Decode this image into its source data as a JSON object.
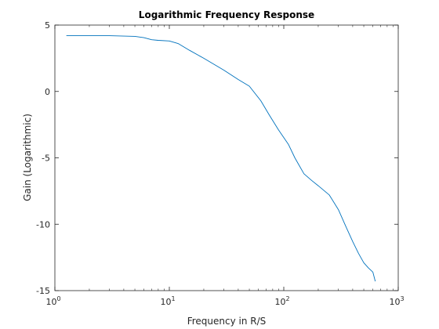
{
  "chart_data": {
    "type": "line",
    "title": "Logarithmic Frequency Response",
    "xlabel": "Frequency in R/S",
    "ylabel": "Gain (Logarithmic)",
    "xscale": "log",
    "xlim": [
      1,
      1000
    ],
    "ylim": [
      -15,
      5
    ],
    "grid": false,
    "legend": "none",
    "x_ticks": [
      {
        "value": 1,
        "base": "10",
        "exp": "0"
      },
      {
        "value": 10,
        "base": "10",
        "exp": "1"
      },
      {
        "value": 100,
        "base": "10",
        "exp": "2"
      },
      {
        "value": 1000,
        "base": "10",
        "exp": "3"
      }
    ],
    "y_ticks": [
      {
        "value": 5,
        "label": "5"
      },
      {
        "value": 0,
        "label": "0"
      },
      {
        "value": -5,
        "label": "-5"
      },
      {
        "value": -10,
        "label": "-10"
      },
      {
        "value": -15,
        "label": "-15"
      }
    ],
    "series": [
      {
        "color": "#0072bd",
        "x": [
          1.26,
          2,
          3,
          5,
          6,
          7,
          8,
          10,
          12,
          15,
          20,
          30,
          40,
          50,
          63,
          75,
          90,
          110,
          125,
          150,
          175,
          200,
          250,
          300,
          350,
          400,
          450,
          500,
          550,
          600,
          630
        ],
        "y": [
          4.2,
          4.2,
          4.2,
          4.15,
          4.05,
          3.9,
          3.85,
          3.8,
          3.6,
          3.1,
          2.5,
          1.6,
          0.9,
          0.4,
          -0.7,
          -1.8,
          -2.9,
          -4.0,
          -5.0,
          -6.2,
          -6.7,
          -7.1,
          -7.8,
          -8.9,
          -10.2,
          -11.3,
          -12.2,
          -12.9,
          -13.3,
          -13.6,
          -14.3
        ]
      }
    ]
  }
}
